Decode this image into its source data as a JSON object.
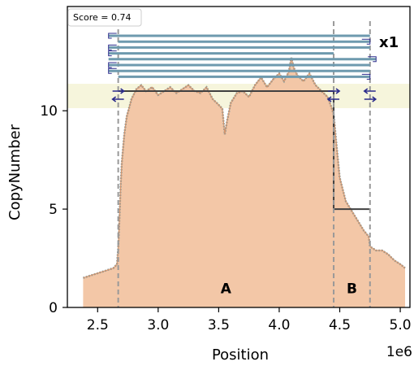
{
  "chart_data": {
    "type": "area",
    "xlabel": "Position",
    "ylabel": "CopyNumber",
    "x_offset_label": "1e6",
    "xlim": [
      2.25,
      5.08
    ],
    "ylim": [
      0,
      15.3
    ],
    "xticks": [
      2.5,
      3.0,
      3.5,
      4.0,
      4.5,
      5.0
    ],
    "xtick_labels": [
      "2.5",
      "3.0",
      "3.5",
      "4.0",
      "4.5",
      "5.0"
    ],
    "yticks": [
      0,
      5,
      10
    ],
    "ytick_labels": [
      "0",
      "5",
      "10"
    ],
    "score_label": "Score = 0.74",
    "multiplicity_label": "x1",
    "colors": {
      "fill": "#f3c7a7",
      "trace": "#8a9a9a",
      "segment": "#404040",
      "breakpoint": "#999999",
      "band": "#f6f5dc",
      "cycle_line": "#6e9aae",
      "arrow": "#2b2b8c"
    },
    "profile": {
      "x": [
        2.38,
        2.48,
        2.58,
        2.63,
        2.66,
        2.67,
        2.68,
        2.69,
        2.7,
        2.72,
        2.74,
        2.78,
        2.82,
        2.86,
        2.9,
        2.95,
        3.0,
        3.05,
        3.1,
        3.15,
        3.2,
        3.25,
        3.3,
        3.35,
        3.4,
        3.45,
        3.5,
        3.53,
        3.55,
        3.57,
        3.6,
        3.65,
        3.7,
        3.75,
        3.8,
        3.85,
        3.9,
        3.95,
        4.0,
        4.04,
        4.08,
        4.1,
        4.12,
        4.15,
        4.2,
        4.25,
        4.3,
        4.35,
        4.4,
        4.43,
        4.45,
        4.47,
        4.5,
        4.55,
        4.6,
        4.65,
        4.7,
        4.74,
        4.75,
        4.8,
        4.85,
        4.9,
        4.95,
        5.0,
        5.04
      ],
      "y": [
        1.5,
        1.7,
        1.9,
        2.0,
        2.2,
        3.0,
        4.5,
        6.2,
        7.4,
        8.8,
        9.7,
        10.6,
        11.1,
        11.3,
        11.0,
        11.2,
        10.8,
        11.0,
        11.2,
        10.9,
        11.1,
        11.3,
        11.0,
        10.9,
        11.2,
        10.6,
        10.3,
        10.1,
        8.8,
        9.5,
        10.4,
        10.9,
        11.0,
        10.7,
        11.3,
        11.7,
        11.2,
        11.6,
        11.9,
        11.5,
        12.0,
        12.7,
        12.2,
        11.8,
        11.5,
        11.9,
        11.3,
        11.0,
        10.7,
        10.2,
        9.8,
        8.5,
        6.6,
        5.4,
        4.9,
        4.4,
        3.9,
        3.6,
        3.1,
        2.9,
        2.9,
        2.7,
        2.4,
        2.2,
        2.0
      ]
    },
    "segments": [
      {
        "x0": 2.67,
        "x1": 4.45,
        "y": 11.0
      },
      {
        "x0": 4.45,
        "x1": 4.75,
        "y": 5.0
      }
    ],
    "breakpoints": [
      2.67,
      4.45,
      4.75
    ],
    "segment_labels": [
      {
        "text": "A",
        "x": 3.56,
        "y": 0.6
      },
      {
        "text": "B",
        "x": 4.6,
        "y": 0.6
      }
    ],
    "cycle_rows": [
      {
        "x0": 2.59,
        "x1": 4.75,
        "dir": "left"
      },
      {
        "x0": 2.67,
        "x1": 4.75,
        "dir": "right"
      },
      {
        "x0": 2.59,
        "x1": 4.75,
        "dir": "left"
      },
      {
        "x0": 2.59,
        "x1": 4.45,
        "dir": "left"
      },
      {
        "x0": 2.59,
        "x1": 4.8,
        "dir": "right"
      },
      {
        "x0": 2.59,
        "x1": 4.75,
        "dir": "left"
      },
      {
        "x0": 2.59,
        "x1": 4.75,
        "dir": "left"
      },
      {
        "x0": 2.67,
        "x1": 4.75,
        "dir": "right"
      }
    ],
    "band_arrows": [
      {
        "x": 2.67,
        "row": 0,
        "dir": "right"
      },
      {
        "x": 2.67,
        "row": 1,
        "dir": "left"
      },
      {
        "x": 4.45,
        "row": 0,
        "dir": "right"
      },
      {
        "x": 4.45,
        "row": 1,
        "dir": "left"
      },
      {
        "x": 4.75,
        "row": 0,
        "dir": "left"
      },
      {
        "x": 4.75,
        "row": 1,
        "dir": "right"
      }
    ]
  }
}
